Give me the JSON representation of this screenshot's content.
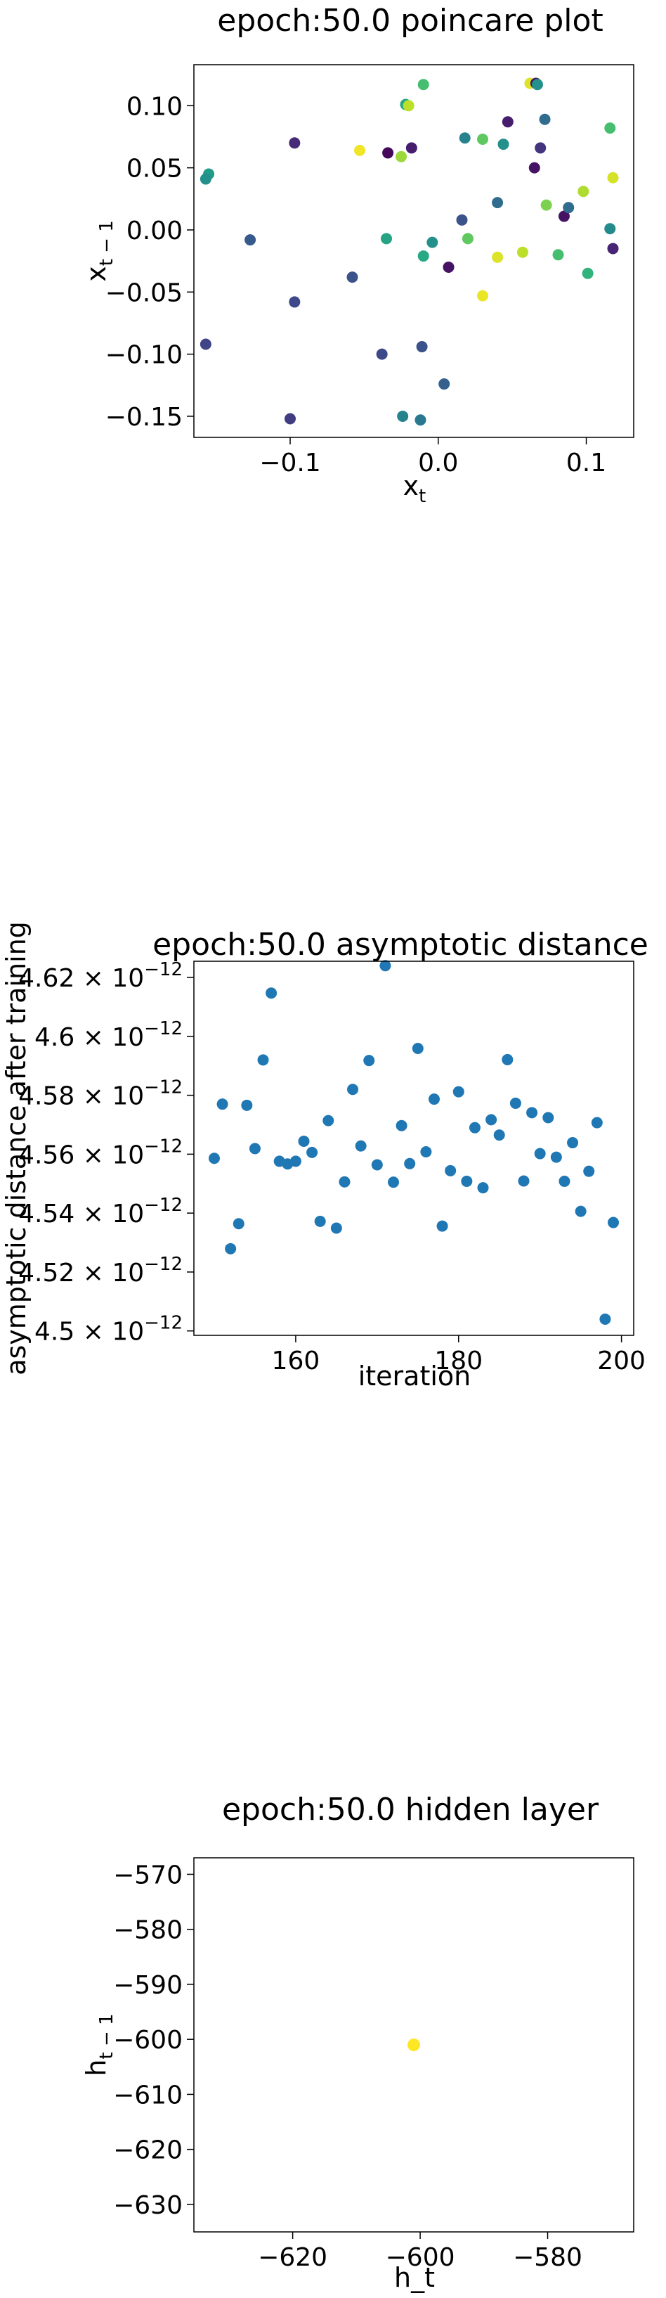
{
  "chart_data": [
    {
      "type": "scatter",
      "title": "epoch:50.0 poincare plot",
      "xlabel_main": "x",
      "xlabel_sub": "t",
      "ylabel_main": "x",
      "ylabel_sub": "t − 1",
      "xlim": [
        -0.165,
        0.132
      ],
      "ylim": [
        -0.167,
        0.133
      ],
      "xticks": [
        -0.1,
        0.0,
        0.1
      ],
      "xtick_labels": [
        "−0.1",
        "0.0",
        "0.1"
      ],
      "yticks": [
        0.1,
        0.05,
        0.0,
        -0.05,
        -0.1,
        -0.15
      ],
      "ytick_labels": [
        "0.10",
        "0.05",
        "0.00",
        "−0.05",
        "−0.10",
        "−0.15"
      ],
      "colormap": "viridis",
      "points": [
        {
          "x": -0.155,
          "y": 0.045,
          "c": 0.55
        },
        {
          "x": -0.157,
          "y": 0.041,
          "c": 0.5
        },
        {
          "x": -0.157,
          "y": -0.092,
          "c": 0.2
        },
        {
          "x": -0.127,
          "y": -0.008,
          "c": 0.28
        },
        {
          "x": -0.097,
          "y": 0.07,
          "c": 0.12
        },
        {
          "x": -0.097,
          "y": -0.058,
          "c": 0.22
        },
        {
          "x": -0.1,
          "y": -0.152,
          "c": 0.18
        },
        {
          "x": -0.058,
          "y": -0.038,
          "c": 0.25
        },
        {
          "x": -0.053,
          "y": 0.064,
          "c": 0.98
        },
        {
          "x": -0.038,
          "y": -0.1,
          "c": 0.22
        },
        {
          "x": -0.035,
          "y": -0.007,
          "c": 0.58
        },
        {
          "x": -0.034,
          "y": 0.062,
          "c": 0.02
        },
        {
          "x": -0.025,
          "y": 0.059,
          "c": 0.85
        },
        {
          "x": -0.022,
          "y": 0.101,
          "c": 0.6
        },
        {
          "x": -0.024,
          "y": -0.15,
          "c": 0.45
        },
        {
          "x": -0.02,
          "y": 0.1,
          "c": 0.9
        },
        {
          "x": -0.018,
          "y": 0.066,
          "c": 0.08
        },
        {
          "x": -0.012,
          "y": -0.153,
          "c": 0.4
        },
        {
          "x": -0.011,
          "y": -0.094,
          "c": 0.25
        },
        {
          "x": -0.01,
          "y": 0.117,
          "c": 0.7
        },
        {
          "x": -0.01,
          "y": -0.021,
          "c": 0.6
        },
        {
          "x": -0.004,
          "y": -0.01,
          "c": 0.5
        },
        {
          "x": 0.004,
          "y": -0.124,
          "c": 0.3
        },
        {
          "x": 0.007,
          "y": -0.03,
          "c": 0.05
        },
        {
          "x": 0.018,
          "y": 0.074,
          "c": 0.45
        },
        {
          "x": 0.016,
          "y": 0.008,
          "c": 0.25
        },
        {
          "x": 0.02,
          "y": -0.007,
          "c": 0.75
        },
        {
          "x": 0.03,
          "y": 0.073,
          "c": 0.75
        },
        {
          "x": 0.03,
          "y": -0.053,
          "c": 0.97
        },
        {
          "x": 0.04,
          "y": -0.022,
          "c": 0.95
        },
        {
          "x": 0.04,
          "y": 0.022,
          "c": 0.35
        },
        {
          "x": 0.044,
          "y": 0.069,
          "c": 0.5
        },
        {
          "x": 0.047,
          "y": 0.087,
          "c": 0.08
        },
        {
          "x": 0.057,
          "y": -0.018,
          "c": 0.9
        },
        {
          "x": 0.062,
          "y": 0.118,
          "c": 0.95
        },
        {
          "x": 0.066,
          "y": 0.118,
          "c": 0.05
        },
        {
          "x": 0.067,
          "y": 0.117,
          "c": 0.5
        },
        {
          "x": 0.065,
          "y": 0.05,
          "c": 0.05
        },
        {
          "x": 0.069,
          "y": 0.066,
          "c": 0.15
        },
        {
          "x": 0.072,
          "y": 0.089,
          "c": 0.35
        },
        {
          "x": 0.073,
          "y": 0.02,
          "c": 0.8
        },
        {
          "x": 0.081,
          "y": -0.02,
          "c": 0.7
        },
        {
          "x": 0.085,
          "y": 0.011,
          "c": 0.05
        },
        {
          "x": 0.088,
          "y": 0.018,
          "c": 0.35
        },
        {
          "x": 0.098,
          "y": 0.031,
          "c": 0.88
        },
        {
          "x": 0.101,
          "y": -0.035,
          "c": 0.65
        },
        {
          "x": 0.116,
          "y": 0.082,
          "c": 0.7
        },
        {
          "x": 0.116,
          "y": 0.001,
          "c": 0.48
        },
        {
          "x": 0.118,
          "y": 0.042,
          "c": 0.94
        },
        {
          "x": 0.118,
          "y": -0.015,
          "c": 0.1
        }
      ]
    },
    {
      "type": "scatter",
      "title": "epoch:50.0 asymptotic distance",
      "xlabel": "iteration",
      "ylabel": "asymptotic distance after training",
      "xlim": [
        147.5,
        201.5
      ],
      "ylim": [
        4.4985,
        4.6255
      ],
      "y_scale_label": "×10⁻¹²",
      "xticks": [
        160,
        180,
        200
      ],
      "xtick_labels": [
        "160",
        "180",
        "200"
      ],
      "yticks": [
        4.62,
        4.6,
        4.58,
        4.56,
        4.54,
        4.52,
        4.5
      ],
      "ytick_labels": [
        "4.62",
        "4.6",
        "4.58",
        "4.56",
        "4.54",
        "4.52",
        "4.5"
      ],
      "ytick_suffix_base": "× 10",
      "ytick_suffix_exp": "−12",
      "color": "#1f77b4",
      "x": [
        150,
        151,
        152,
        153,
        154,
        155,
        156,
        157,
        158,
        159,
        160,
        161,
        162,
        163,
        164,
        165,
        166,
        167,
        168,
        169,
        170,
        171,
        172,
        173,
        174,
        175,
        176,
        177,
        178,
        179,
        180,
        181,
        182,
        183,
        184,
        185,
        186,
        187,
        188,
        189,
        190,
        191,
        192,
        193,
        194,
        195,
        196,
        197,
        198,
        199
      ],
      "y": [
        4.5586,
        4.577,
        4.5279,
        4.5364,
        4.5766,
        4.5619,
        4.592,
        4.6147,
        4.5576,
        4.5567,
        4.5576,
        4.5644,
        4.5606,
        4.5372,
        4.5714,
        4.5349,
        4.5506,
        4.582,
        4.5628,
        4.5918,
        4.5564,
        4.624,
        4.5505,
        4.5697,
        4.5568,
        4.5959,
        4.5608,
        4.5787,
        4.5356,
        4.5544,
        4.5812,
        4.5508,
        4.569,
        4.5486,
        4.5717,
        4.5665,
        4.5921,
        4.5773,
        4.5509,
        4.5741,
        4.5602,
        4.5724,
        4.559,
        4.5508,
        4.5639,
        4.5406,
        4.5542,
        4.5707,
        4.504,
        4.5368
      ]
    },
    {
      "type": "scatter",
      "title": "epoch:50.0 hidden layer",
      "xlabel": "h_t",
      "ylabel_main": "h",
      "ylabel_sub": "t − 1",
      "xlim": [
        -635.5,
        -566.5
      ],
      "ylim": [
        -635,
        -567
      ],
      "xticks": [
        -620,
        -600,
        -580
      ],
      "xtick_labels": [
        "−620",
        "−600",
        "−580"
      ],
      "yticks": [
        -570,
        -580,
        -590,
        -600,
        -610,
        -620,
        -630
      ],
      "ytick_labels": [
        "−570",
        "−580",
        "−590",
        "−600",
        "−610",
        "−620",
        "−630"
      ],
      "color": "#fde725",
      "points": [
        {
          "x": -601,
          "y": -601
        }
      ]
    }
  ]
}
